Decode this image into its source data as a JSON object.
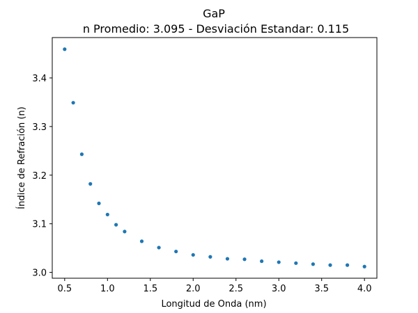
{
  "chart_data": {
    "type": "scatter",
    "title": "GaP",
    "subtitle": "n Promedio: 3.095 - Desviación Estandar: 0.115",
    "xlabel": "Longitud de Onda (nm)",
    "ylabel": "Índice de Refración (n)",
    "xlim": [
      0.355,
      4.145
    ],
    "ylim": [
      2.988,
      3.483
    ],
    "grid": false,
    "marker_color": "#1f77b4",
    "x_ticks": [
      "0.5",
      "1.0",
      "1.5",
      "2.0",
      "2.5",
      "3.0",
      "3.5",
      "4.0"
    ],
    "y_ticks": [
      "3.0",
      "3.1",
      "3.2",
      "3.3",
      "3.4"
    ],
    "series": [
      {
        "x": [
          0.5,
          0.6,
          0.7,
          0.8,
          0.9,
          1.0,
          1.1,
          1.2,
          1.4,
          1.6,
          1.8,
          2.0,
          2.2,
          2.4,
          2.6,
          2.8,
          3.0,
          3.2,
          3.4,
          3.6,
          3.8,
          4.0
        ],
        "y": [
          3.459,
          3.349,
          3.243,
          3.182,
          3.142,
          3.119,
          3.098,
          3.084,
          3.064,
          3.051,
          3.043,
          3.036,
          3.032,
          3.028,
          3.027,
          3.023,
          3.021,
          3.019,
          3.017,
          3.015,
          3.015,
          3.012
        ]
      }
    ]
  }
}
